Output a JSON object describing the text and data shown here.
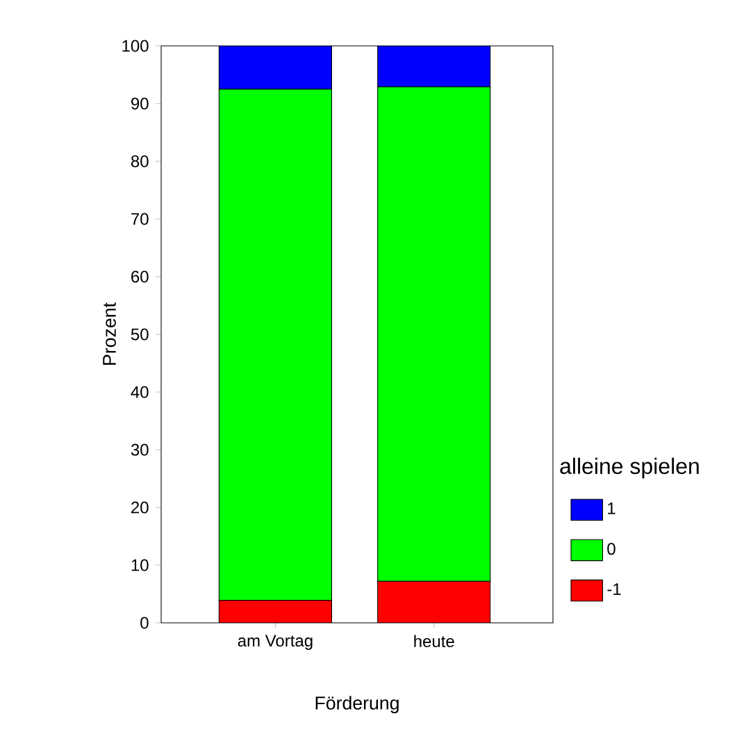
{
  "chart_data": {
    "type": "bar",
    "stacked": true,
    "xlabel": "Förderung",
    "ylabel": "Prozent",
    "legend_title": "alleine spielen",
    "legend": "right",
    "categories": [
      "am Vortag",
      "heute"
    ],
    "series": [
      {
        "name": "-1",
        "color": "#ff0000",
        "values": [
          3.9,
          7.2
        ]
      },
      {
        "name": "0",
        "color": "#00ff00",
        "values": [
          88.6,
          85.7
        ]
      },
      {
        "name": "1",
        "color": "#0000ff",
        "values": [
          7.5,
          7.1
        ]
      }
    ],
    "ylim": [
      0,
      100
    ],
    "yticks": [
      0,
      10,
      20,
      30,
      40,
      50,
      60,
      70,
      80,
      90,
      100
    ],
    "grid": false
  }
}
